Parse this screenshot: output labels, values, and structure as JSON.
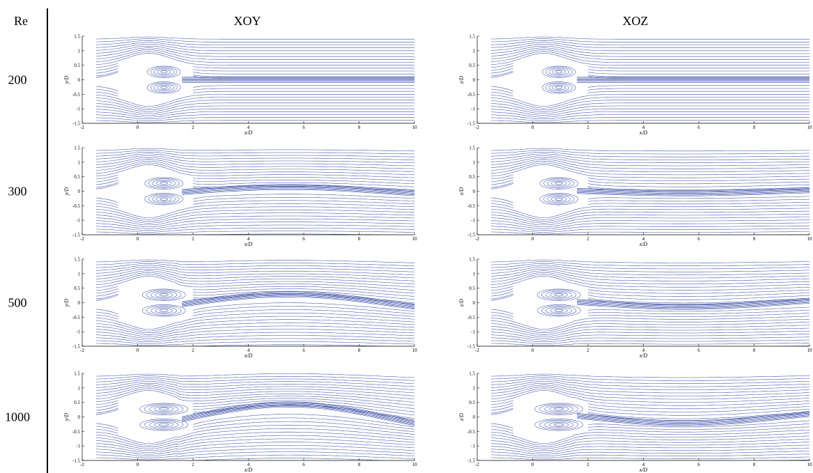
{
  "header": {
    "re_label": "Re",
    "columns": [
      "XOY",
      "XOZ"
    ]
  },
  "rows": [
    {
      "re": 200,
      "panels": [
        {
          "xlabel": "x/D",
          "ylabel": "y/D",
          "xlim": [
            -2,
            10
          ],
          "ylim": [
            -1.5,
            1.5
          ],
          "xticks": [
            -2,
            0,
            2,
            4,
            6,
            8,
            10
          ],
          "yticks": [
            -1.5,
            -1,
            -0.5,
            0,
            0.5,
            1,
            1.5
          ]
        },
        {
          "xlabel": "x/D",
          "ylabel": "z/D",
          "xlim": [
            -2,
            10
          ],
          "ylim": [
            -1.5,
            1.5
          ],
          "xticks": [
            -2,
            0,
            2,
            4,
            6,
            8,
            10
          ],
          "yticks": [
            -1.5,
            -1,
            -0.5,
            0,
            0.5,
            1,
            1.5
          ]
        }
      ]
    },
    {
      "re": 300,
      "panels": [
        {
          "xlabel": "x/D",
          "ylabel": "y/D",
          "xlim": [
            -2,
            10
          ],
          "ylim": [
            -1.5,
            1.5
          ],
          "xticks": [
            -2,
            0,
            2,
            4,
            6,
            8,
            10
          ],
          "yticks": [
            -1.5,
            -1,
            -0.5,
            0,
            0.5,
            1,
            1.5
          ]
        },
        {
          "xlabel": "x/D",
          "ylabel": "z/D",
          "xlim": [
            -2,
            10
          ],
          "ylim": [
            -1.5,
            1.5
          ],
          "xticks": [
            -2,
            0,
            2,
            4,
            6,
            8,
            10
          ],
          "yticks": [
            -1.5,
            -1,
            -0.5,
            0,
            0.5,
            1,
            1.5
          ]
        }
      ]
    },
    {
      "re": 500,
      "panels": [
        {
          "xlabel": "x/D",
          "ylabel": "y/D",
          "xlim": [
            -2,
            10
          ],
          "ylim": [
            -1.5,
            1.5
          ],
          "xticks": [
            -2,
            0,
            2,
            4,
            6,
            8,
            10
          ],
          "yticks": [
            -1.5,
            -1,
            -0.5,
            0,
            0.5,
            1,
            1.5
          ]
        },
        {
          "xlabel": "x/D",
          "ylabel": "z/D",
          "xlim": [
            -2,
            10
          ],
          "ylim": [
            -1.5,
            1.5
          ],
          "xticks": [
            -2,
            0,
            2,
            4,
            6,
            8,
            10
          ],
          "yticks": [
            -1.5,
            -1,
            -0.5,
            0,
            0.5,
            1,
            1.5
          ]
        }
      ]
    },
    {
      "re": 1000,
      "panels": [
        {
          "xlabel": "x/D",
          "ylabel": "y/D",
          "xlim": [
            -2,
            10
          ],
          "ylim": [
            -1.5,
            1.5
          ],
          "xticks": [
            -2,
            0,
            2,
            4,
            6,
            8,
            10
          ],
          "yticks": [
            -1.5,
            -1,
            -0.5,
            0,
            0.5,
            1,
            1.5
          ]
        },
        {
          "xlabel": "x/D",
          "ylabel": "z/D",
          "xlim": [
            -2,
            10
          ],
          "ylim": [
            -1.5,
            1.5
          ],
          "xticks": [
            -2,
            0,
            2,
            4,
            6,
            8,
            10
          ],
          "yticks": [
            -1.5,
            -1,
            -0.5,
            0,
            0.5,
            1,
            1.5
          ]
        }
      ]
    }
  ]
}
